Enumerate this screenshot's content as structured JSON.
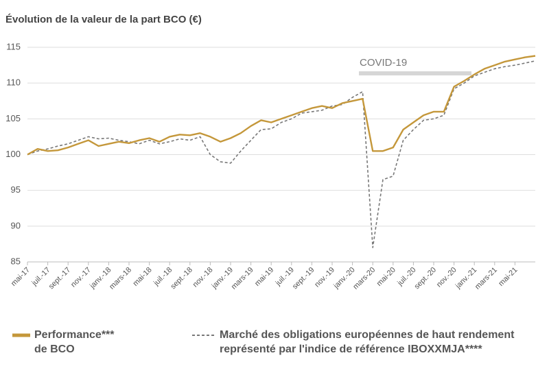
{
  "chart_data": {
    "type": "line",
    "title": "Évolution de la valeur de la part BCO (€)",
    "annotation": "COVID-19",
    "categories": [
      "mai-17",
      null,
      "juil.-17",
      null,
      "sept.-17",
      null,
      "nov.-17",
      null,
      "janv.-18",
      null,
      "mars-18",
      null,
      "mai-18",
      null,
      "juil.-18",
      null,
      "sept.-18",
      null,
      "nov.-18",
      null,
      "janv.-19",
      null,
      "mars-19",
      null,
      "mai-19",
      null,
      "juil.-19",
      null,
      "sept.-19",
      null,
      "nov.-19",
      null,
      "janv.-20",
      null,
      "mars-20",
      null,
      "mai-20",
      null,
      "juil.-20",
      null,
      "sept.-20",
      null,
      "nov.-20",
      null,
      "janv.-21",
      null,
      "mars-21",
      null,
      "mai-21",
      null,
      null
    ],
    "series": [
      {
        "name": "Performance*** de BCO",
        "color": "#c4973a",
        "dashed": false,
        "values": [
          100,
          100.8,
          100.5,
          100.6,
          101.0,
          101.5,
          102.0,
          101.2,
          101.5,
          101.8,
          101.6,
          102.0,
          102.3,
          101.8,
          102.5,
          102.8,
          102.7,
          103.0,
          102.5,
          101.8,
          102.3,
          103.0,
          104.0,
          104.8,
          104.5,
          105.0,
          105.5,
          106.0,
          106.5,
          106.8,
          106.5,
          107.2,
          107.5,
          107.8,
          100.5,
          100.5,
          101.0,
          103.5,
          104.5,
          105.5,
          106.0,
          106.0,
          109.5,
          110.3,
          111.2,
          112.0,
          112.5,
          113.0,
          113.3,
          113.6,
          113.8
        ]
      },
      {
        "name": "Marché des obligations européennes de haut rendement représenté par l'indice de référence IBOXXMJA****",
        "color": "#777777",
        "dashed": true,
        "values": [
          100,
          100.5,
          100.8,
          101.2,
          101.5,
          102.0,
          102.5,
          102.2,
          102.3,
          102.0,
          101.8,
          101.5,
          102.0,
          101.5,
          101.8,
          102.2,
          102.0,
          102.5,
          100.0,
          99.0,
          98.8,
          100.5,
          102.0,
          103.5,
          103.6,
          104.5,
          105.0,
          105.8,
          106.0,
          106.2,
          106.8,
          107.0,
          108.0,
          108.8,
          87.0,
          96.5,
          97.0,
          102.0,
          103.5,
          104.8,
          105.0,
          105.5,
          109.2,
          110.0,
          111.0,
          111.5,
          112.0,
          112.3,
          112.5,
          112.8,
          113.1
        ]
      }
    ],
    "ylim": [
      85,
      115
    ],
    "yticks": [
      85,
      90,
      95,
      100,
      105,
      110,
      115
    ],
    "grid": true
  }
}
